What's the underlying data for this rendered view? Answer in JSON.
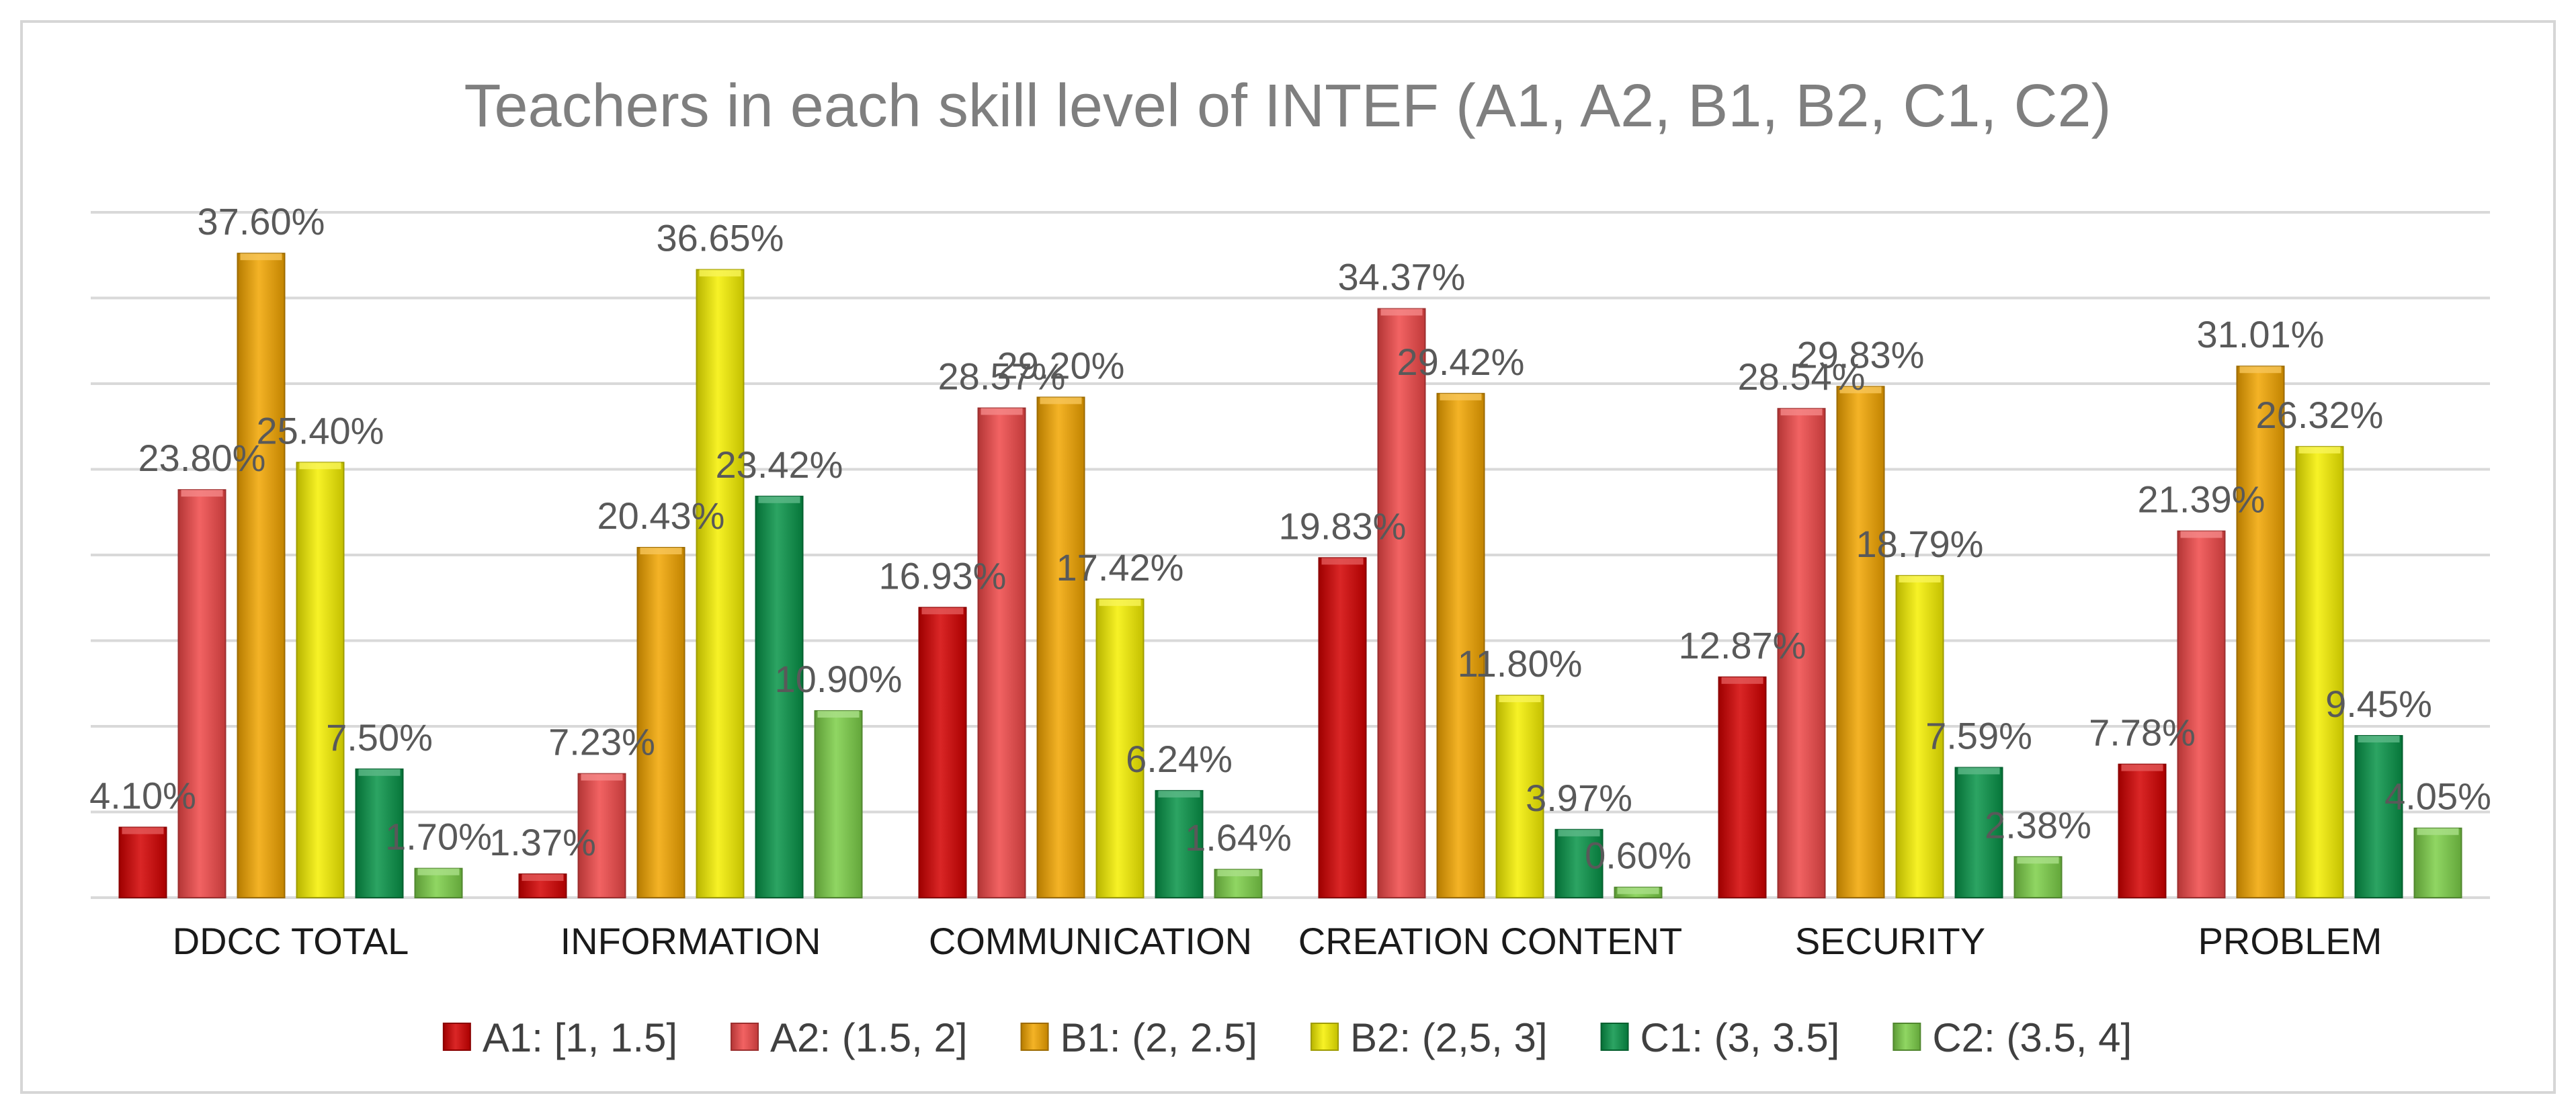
{
  "chart_data": {
    "type": "bar",
    "title": "Teachers in each skill level of INTEF (A1, A2, B1, B2, C1, C2)",
    "categories": [
      "DDCC TOTAL",
      "INFORMATION",
      "COMMUNICATION",
      "CREATION CONTENT",
      "SECURITY",
      "PROBLEM"
    ],
    "series": [
      {
        "name": "A1: [1, 1.5]",
        "color": "#d40000",
        "values": [
          4.1,
          1.37,
          16.93,
          19.83,
          12.87,
          7.78
        ],
        "labels": [
          "4.10%",
          "1.37%",
          "16.93%",
          "19.83%",
          "12.87%",
          "7.78%"
        ]
      },
      {
        "name": "A2: (1.5, 2]",
        "color": "#f04848",
        "values": [
          23.8,
          7.23,
          28.57,
          34.37,
          28.54,
          21.39
        ],
        "labels": [
          "23.80%",
          "7.23%",
          "28.57%",
          "34.37%",
          "28.54%",
          "21.39%"
        ]
      },
      {
        "name": "B1: (2, 2.5]",
        "color": "#f2a500",
        "values": [
          37.6,
          20.43,
          29.2,
          29.42,
          29.83,
          31.01
        ],
        "labels": [
          "37.60%",
          "20.43%",
          "29.20%",
          "29.42%",
          "29.83%",
          "31.01%"
        ]
      },
      {
        "name": "B2: (2,5, 3]",
        "color": "#f5f000",
        "values": [
          25.4,
          36.65,
          17.42,
          11.8,
          18.79,
          26.32
        ],
        "labels": [
          "25.40%",
          "36.65%",
          "17.42%",
          "11.80%",
          "18.79%",
          "26.32%"
        ]
      },
      {
        "name": "C1: (3, 3.5]",
        "color": "#079448",
        "values": [
          7.5,
          23.42,
          6.24,
          3.97,
          7.59,
          9.45
        ],
        "labels": [
          "7.50%",
          "23.42%",
          "6.24%",
          "3.97%",
          "7.59%",
          "9.45%"
        ]
      },
      {
        "name": "C2: (3.5, 4]",
        "color": "#7ccf48",
        "values": [
          1.7,
          10.9,
          1.64,
          0.6,
          2.38,
          4.05
        ],
        "labels": [
          "1.70%",
          "10.90%",
          "1.64%",
          "0.60%",
          "2.38%",
          "4.05%"
        ]
      }
    ],
    "xlabel": "",
    "ylabel": "",
    "ylim": [
      0,
      40
    ],
    "y_gridlines": [
      0,
      5,
      10,
      15,
      20,
      25,
      30,
      35,
      40
    ],
    "y_tick_labels_shown": false,
    "legend_position": "bottom"
  }
}
